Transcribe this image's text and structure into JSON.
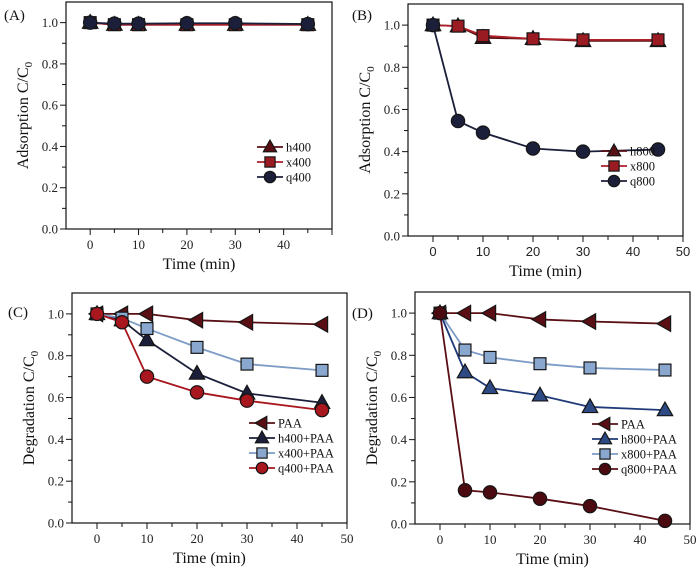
{
  "chart_data": [
    {
      "panel": "(A)",
      "type": "line",
      "title": "",
      "xlabel": "Time (min)",
      "ylabel": "Adsorption C/C0",
      "xlim": [
        -5,
        50
      ],
      "ylim": [
        0,
        1.1
      ],
      "xticks": [
        0,
        10,
        20,
        30,
        40
      ],
      "yticks": [
        "0.0",
        "0.2",
        "0.4",
        "0.6",
        "0.8",
        "1.0"
      ],
      "legend_position": "bottom-right",
      "x": [
        0,
        5,
        10,
        20,
        30,
        45
      ],
      "series": [
        {
          "name": "h400",
          "marker": "triangle-up",
          "color": "#5a0f14",
          "line": "#5a0f14",
          "values": [
            1.0,
            0.99,
            0.99,
            0.99,
            0.99,
            0.99
          ]
        },
        {
          "name": "x400",
          "marker": "square",
          "color": "#9b1b22",
          "line": "#b02028",
          "values": [
            1.0,
            0.99,
            0.99,
            0.99,
            0.99,
            0.99
          ]
        },
        {
          "name": "q400",
          "marker": "circle",
          "color": "#1c1f3a",
          "line": "#1c1f3a",
          "values": [
            1.0,
            0.995,
            0.995,
            0.997,
            0.997,
            0.993
          ]
        }
      ]
    },
    {
      "panel": "(B)",
      "type": "line",
      "title": "",
      "xlabel": "Time (min)",
      "ylabel": "Adsorption C/C0",
      "xlim": [
        -5,
        50
      ],
      "ylim": [
        0,
        1.1
      ],
      "xticks": [
        0,
        10,
        20,
        30,
        40,
        50
      ],
      "yticks": [
        "0.0",
        "0.2",
        "0.4",
        "0.6",
        "0.8",
        "1.0"
      ],
      "legend_position": "bottom-right",
      "x": [
        0,
        5,
        10,
        20,
        30,
        45
      ],
      "series": [
        {
          "name": "h800",
          "marker": "triangle-up",
          "color": "#5a0f14",
          "line": "#5a0f14",
          "values": [
            1.0,
            0.995,
            0.94,
            0.935,
            0.925,
            0.925
          ]
        },
        {
          "name": "x800",
          "marker": "square",
          "color": "#9b1b22",
          "line": "#b02028",
          "values": [
            1.0,
            0.995,
            0.95,
            0.935,
            0.93,
            0.93
          ]
        },
        {
          "name": "q800",
          "marker": "circle",
          "color": "#1c1f3a",
          "line": "#1c1f3a",
          "values": [
            1.0,
            0.545,
            0.49,
            0.415,
            0.4,
            0.41
          ]
        }
      ]
    },
    {
      "panel": "(C)",
      "type": "line",
      "title": "",
      "xlabel": "Time (min)",
      "ylabel": "Degradation C/C0",
      "xlim": [
        -5,
        50
      ],
      "ylim": [
        0,
        1.1
      ],
      "xticks": [
        0,
        10,
        20,
        30,
        40,
        50
      ],
      "yticks": [
        "0.0",
        "0.2",
        "0.4",
        "0.6",
        "0.8",
        "1.0"
      ],
      "legend_position": "bottom-right",
      "x": [
        0,
        5,
        10,
        20,
        30,
        45
      ],
      "series": [
        {
          "name": "PAA",
          "marker": "triangle-left",
          "color": "#5a0f14",
          "line": "#5a0f14",
          "values": [
            1.0,
            1.0,
            1.0,
            0.97,
            0.96,
            0.95
          ]
        },
        {
          "name": "h400+PAA",
          "marker": "triangle-up",
          "color": "#1c1f3a",
          "line": "#1c1f3a",
          "values": [
            1.0,
            0.97,
            0.875,
            0.715,
            0.62,
            0.575
          ]
        },
        {
          "name": "x400+PAA",
          "marker": "square",
          "color": "#8aa8cf",
          "line": "#7d9cc6",
          "values": [
            1.0,
            0.98,
            0.93,
            0.84,
            0.76,
            0.73
          ]
        },
        {
          "name": "q400+PAA",
          "marker": "circle",
          "color": "#a8161e",
          "line": "#a8161e",
          "values": [
            1.0,
            0.96,
            0.7,
            0.625,
            0.585,
            0.54
          ]
        }
      ]
    },
    {
      "panel": "(D)",
      "type": "line",
      "title": "",
      "xlabel": "Time (min)",
      "ylabel": "Degradation C/C0",
      "xlim": [
        -5,
        50
      ],
      "ylim": [
        0,
        1.1
      ],
      "xticks": [
        0,
        10,
        20,
        30,
        40,
        50
      ],
      "yticks": [
        "0.0",
        "0.2",
        "0.4",
        "0.6",
        "0.8",
        "1.0"
      ],
      "legend_position": "bottom-right",
      "x": [
        0,
        5,
        10,
        20,
        30,
        45
      ],
      "series": [
        {
          "name": "PAA",
          "marker": "triangle-left",
          "color": "#5a0f14",
          "line": "#5a0f14",
          "values": [
            1.0,
            1.0,
            1.0,
            0.97,
            0.96,
            0.95
          ]
        },
        {
          "name": "h800+PAA",
          "marker": "triangle-up",
          "color": "#2d4a85",
          "line": "#1f3a78",
          "values": [
            1.0,
            0.72,
            0.645,
            0.61,
            0.555,
            0.54
          ]
        },
        {
          "name": "x800+PAA",
          "marker": "square",
          "color": "#8aa8cf",
          "line": "#7d9cc6",
          "values": [
            1.0,
            0.825,
            0.79,
            0.76,
            0.74,
            0.73
          ]
        },
        {
          "name": "q800+PAA",
          "marker": "circle",
          "color": "#4a0a10",
          "line": "#5a0f14",
          "values": [
            1.0,
            0.16,
            0.15,
            0.12,
            0.085,
            0.015
          ]
        }
      ]
    }
  ]
}
